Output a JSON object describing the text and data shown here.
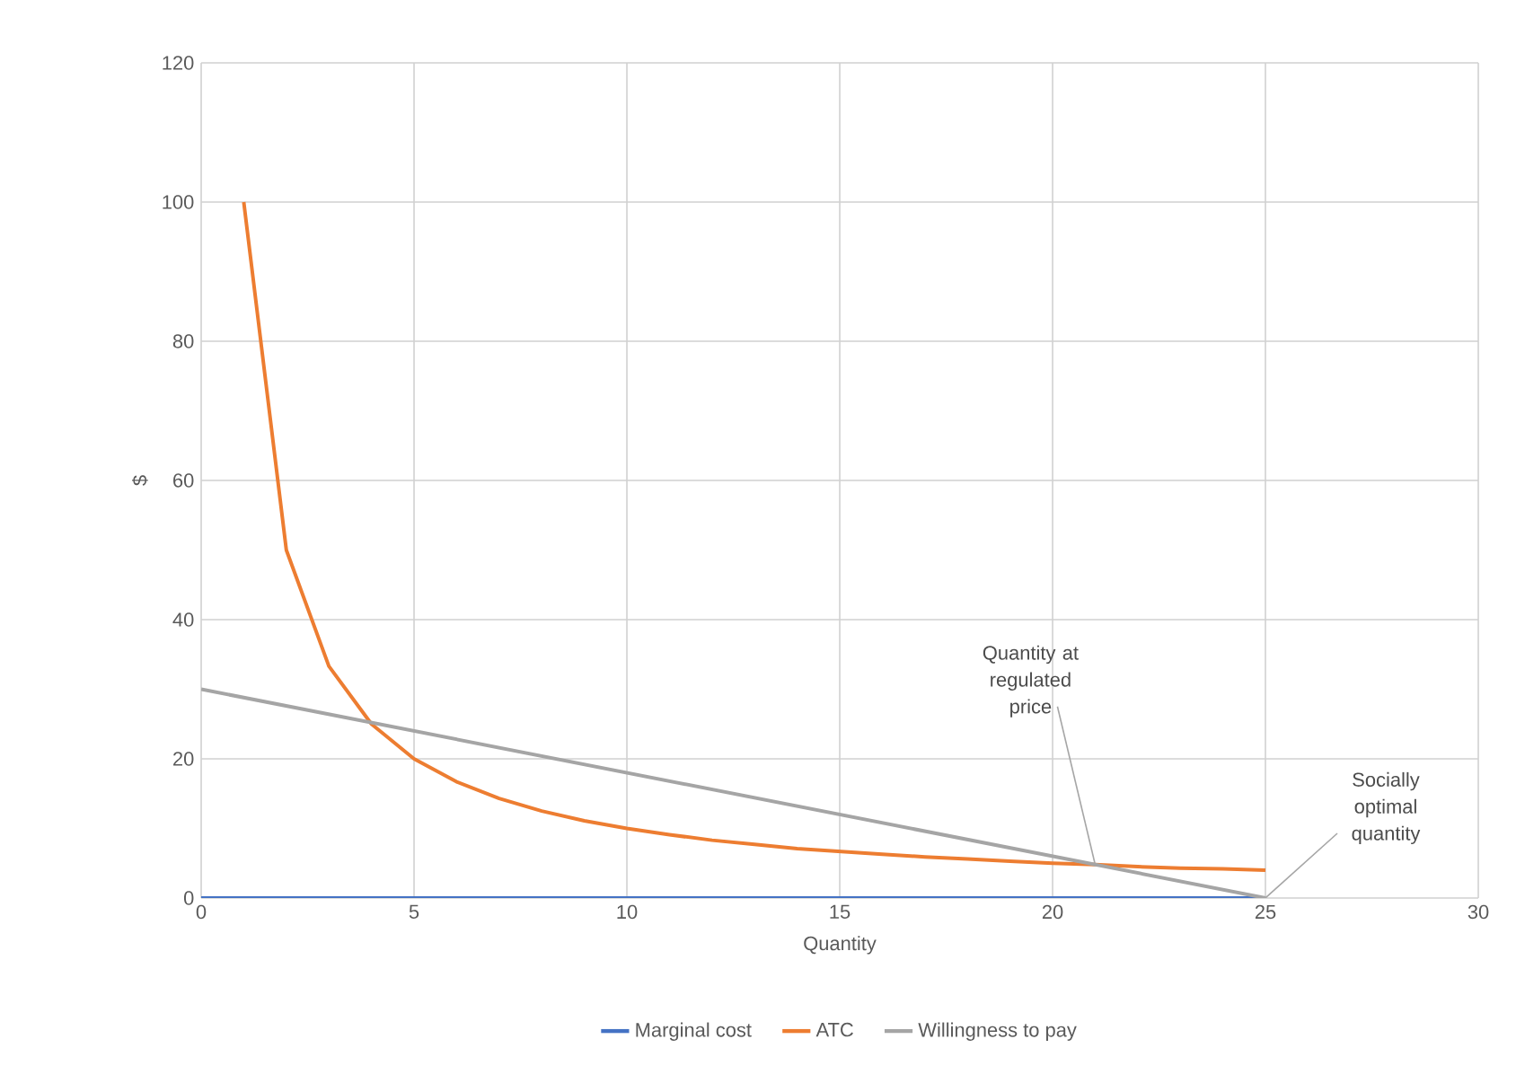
{
  "chart_data": {
    "type": "line",
    "xlabel": "Quantity",
    "ylabel": "$",
    "xlim": [
      0,
      30
    ],
    "ylim": [
      0,
      120
    ],
    "xticks": [
      0,
      5,
      10,
      15,
      20,
      25,
      30
    ],
    "yticks": [
      0,
      20,
      40,
      60,
      80,
      100,
      120
    ],
    "grid": true,
    "legend": "bottom",
    "marker": "none",
    "line_style": "solid",
    "series": [
      {
        "name": "Marginal cost",
        "color": "#4472c4",
        "x": [
          0,
          25
        ],
        "values": [
          0,
          0
        ]
      },
      {
        "name": "ATC",
        "color": "#ed7d31",
        "x": [
          1,
          2,
          3,
          4,
          5,
          6,
          7,
          8,
          9,
          10,
          11,
          12,
          13,
          14,
          15,
          16,
          17,
          18,
          19,
          20,
          21,
          22,
          23,
          24,
          25
        ],
        "values": [
          100,
          50,
          33.3,
          25,
          20,
          16.7,
          14.3,
          12.5,
          11.1,
          10,
          9.1,
          8.3,
          7.7,
          7.1,
          6.7,
          6.3,
          5.9,
          5.6,
          5.3,
          5,
          4.8,
          4.5,
          4.3,
          4.2,
          4
        ]
      },
      {
        "name": "Willingness to pay",
        "color": "#a5a5a5",
        "x": [
          0,
          25
        ],
        "values": [
          30,
          0
        ]
      }
    ],
    "annotations": [
      {
        "text": "Quantity at regulated price",
        "x": 21,
        "y": 4.8
      },
      {
        "text": "Socially optimal quantity",
        "x": 25,
        "y": 0
      }
    ]
  }
}
